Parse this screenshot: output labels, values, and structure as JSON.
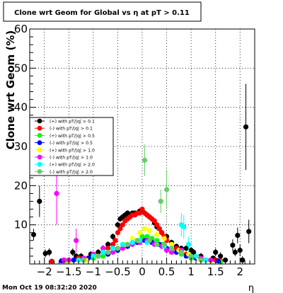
{
  "chart_data": {
    "type": "scatter",
    "title": "Clone wrt Geom for Global vs   η at pT > 0.11",
    "xlabel": "η",
    "ylabel": "Clone wrt Geom (%)",
    "xlim": [
      -2.3,
      2.3
    ],
    "ylim": [
      0,
      60
    ],
    "x_ticks": [
      -2,
      -1.5,
      -1,
      -0.5,
      0,
      0.5,
      1,
      1.5,
      2
    ],
    "x_tick_labels": [
      "−2",
      "−1.5",
      "−1",
      "−0.5",
      "0",
      "0.5",
      "1",
      "1.5",
      "2"
    ],
    "y_ticks": [
      10,
      20,
      30,
      40,
      50,
      60
    ],
    "y_tick_labels": [
      "10",
      "20",
      "30",
      "40",
      "50",
      "60"
    ],
    "grid": true,
    "legend_position": "left-middle",
    "timestamp": "Mon Oct 19 08:32:20 2020",
    "series": [
      {
        "name": "(+) with pT/|q| > 0.1",
        "color": "#000000",
        "points": [
          [
            -2.22,
            7.5,
            1.5
          ],
          [
            -2.1,
            16,
            4
          ],
          [
            -1.98,
            2.7,
            1
          ],
          [
            -1.9,
            3,
            1
          ],
          [
            -1.6,
            1,
            0.6
          ],
          [
            -1.42,
            3,
            1
          ],
          [
            -1.35,
            2,
            0.8
          ],
          [
            -1.25,
            2,
            0.8
          ],
          [
            -1.2,
            1.2,
            0.6
          ],
          [
            -1.05,
            2.5,
            0.8
          ],
          [
            -0.9,
            3,
            0.8
          ],
          [
            -0.8,
            4,
            0.8
          ],
          [
            -0.7,
            5,
            0.8
          ],
          [
            -0.6,
            7,
            0.8
          ],
          [
            -0.5,
            10,
            0.7
          ],
          [
            -0.45,
            11.5,
            0.7
          ],
          [
            -0.4,
            12,
            0.7
          ],
          [
            -0.35,
            12.5,
            0.7
          ],
          [
            -0.3,
            13,
            0.7
          ],
          [
            -0.25,
            12.5,
            0.7
          ],
          [
            -0.2,
            13,
            0.7
          ],
          [
            -0.15,
            13,
            0.7
          ],
          [
            -0.1,
            13,
            0.7
          ],
          [
            -0.05,
            13.5,
            0.7
          ],
          [
            0,
            13.5,
            0.7
          ],
          [
            0.05,
            13,
            0.7
          ],
          [
            0.1,
            12.5,
            0.7
          ],
          [
            0.15,
            12,
            0.7
          ],
          [
            0.2,
            11.5,
            0.7
          ],
          [
            0.25,
            10.5,
            0.7
          ],
          [
            0.3,
            9.5,
            0.7
          ],
          [
            0.35,
            9,
            0.7
          ],
          [
            0.4,
            8,
            0.7
          ],
          [
            0.5,
            7,
            0.7
          ],
          [
            0.6,
            5.5,
            0.7
          ],
          [
            0.7,
            4.5,
            0.7
          ],
          [
            0.8,
            4,
            0.7
          ],
          [
            0.9,
            4,
            0.7
          ],
          [
            1.0,
            3.5,
            0.8
          ],
          [
            1.05,
            3,
            0.8
          ],
          [
            1.2,
            2,
            0.8
          ],
          [
            1.3,
            1,
            0.6
          ],
          [
            1.45,
            1.5,
            0.6
          ],
          [
            1.5,
            3,
            1
          ],
          [
            1.6,
            2,
            1
          ],
          [
            1.7,
            1,
            0.6
          ],
          [
            1.85,
            4.8,
            1.5
          ],
          [
            1.9,
            3,
            1
          ],
          [
            1.95,
            7.3,
            2
          ],
          [
            2.0,
            3.5,
            1.5
          ],
          [
            2.05,
            1,
            1
          ],
          [
            2.12,
            35,
            11
          ],
          [
            2.18,
            8.3,
            3
          ]
        ]
      },
      {
        "name": "(-) with pT/|q| > 0.1",
        "color": "#ff0000",
        "points": [
          [
            -1.85,
            0.7,
            0.5
          ],
          [
            -1.5,
            1,
            0.6
          ],
          [
            -1.3,
            1.5,
            0.6
          ],
          [
            -1.1,
            1.5,
            0.6
          ],
          [
            -0.9,
            2,
            0.6
          ],
          [
            -0.8,
            3,
            0.6
          ],
          [
            -0.7,
            4,
            0.6
          ],
          [
            -0.6,
            5,
            0.6
          ],
          [
            -0.55,
            6,
            0.6
          ],
          [
            -0.5,
            8,
            0.6
          ],
          [
            -0.45,
            9,
            0.6
          ],
          [
            -0.4,
            10,
            0.6
          ],
          [
            -0.35,
            11,
            0.6
          ],
          [
            -0.3,
            11.5,
            0.6
          ],
          [
            -0.25,
            12,
            0.6
          ],
          [
            -0.2,
            12.5,
            0.6
          ],
          [
            -0.15,
            12.5,
            0.6
          ],
          [
            -0.1,
            13,
            0.6
          ],
          [
            -0.05,
            13,
            0.6
          ],
          [
            0,
            14,
            0.6
          ],
          [
            0.05,
            13,
            0.6
          ],
          [
            0.1,
            12.5,
            0.6
          ],
          [
            0.15,
            12,
            0.6
          ],
          [
            0.2,
            11.5,
            0.6
          ],
          [
            0.25,
            11,
            0.6
          ],
          [
            0.3,
            10,
            0.6
          ],
          [
            0.35,
            9,
            0.6
          ],
          [
            0.4,
            8,
            0.6
          ],
          [
            0.45,
            7,
            0.6
          ],
          [
            0.5,
            6,
            0.6
          ],
          [
            0.6,
            5,
            0.6
          ],
          [
            0.7,
            4,
            0.6
          ],
          [
            0.8,
            3.5,
            0.6
          ],
          [
            0.9,
            2.5,
            0.6
          ],
          [
            1.0,
            2,
            0.6
          ],
          [
            1.1,
            1.5,
            0.6
          ],
          [
            1.3,
            1,
            0.6
          ],
          [
            1.5,
            1,
            0.6
          ],
          [
            1.6,
            0.8,
            0.5
          ]
        ]
      },
      {
        "name": "(+) with pT/|q| > 0.5",
        "color": "#00ff00",
        "points": [
          [
            -1.55,
            0.8,
            0.5
          ],
          [
            -1.2,
            1,
            0.5
          ],
          [
            -1.0,
            1.5,
            0.5
          ],
          [
            -0.8,
            2,
            0.5
          ],
          [
            -0.6,
            3,
            0.5
          ],
          [
            -0.5,
            4,
            0.5
          ],
          [
            -0.3,
            5,
            0.5
          ],
          [
            -0.1,
            6,
            0.5
          ],
          [
            0,
            7,
            0.5
          ],
          [
            0.1,
            7,
            0.5
          ],
          [
            0.2,
            6.5,
            0.5
          ],
          [
            0.3,
            6,
            0.5
          ],
          [
            0.4,
            5,
            0.5
          ],
          [
            0.5,
            4,
            0.5
          ],
          [
            0.6,
            3.5,
            0.5
          ],
          [
            0.8,
            2.5,
            0.5
          ],
          [
            1.0,
            1.5,
            0.5
          ],
          [
            1.2,
            1,
            0.5
          ],
          [
            1.4,
            0.8,
            0.5
          ],
          [
            1.6,
            0.5,
            0.5
          ]
        ]
      },
      {
        "name": "(-) with pT/|q| > 0.5",
        "color": "#0000ff",
        "points": [
          [
            -1.65,
            0.8,
            0.5
          ],
          [
            -1.4,
            1,
            0.5
          ],
          [
            -1.1,
            1.5,
            0.5
          ],
          [
            -0.9,
            2,
            0.5
          ],
          [
            -0.7,
            2.5,
            0.5
          ],
          [
            -0.5,
            3.5,
            0.5
          ],
          [
            -0.3,
            4.5,
            0.5
          ],
          [
            -0.1,
            5.5,
            0.5
          ],
          [
            0.05,
            6,
            0.5
          ],
          [
            0.2,
            5.5,
            0.5
          ],
          [
            0.35,
            5,
            0.5
          ],
          [
            0.5,
            4,
            0.5
          ],
          [
            0.7,
            3,
            0.5
          ],
          [
            0.9,
            2,
            0.5
          ],
          [
            1.1,
            1.5,
            0.5
          ],
          [
            1.3,
            1,
            0.5
          ],
          [
            1.55,
            0.8,
            0.5
          ]
        ]
      },
      {
        "name": "(+) with pT/|q| > 1.0",
        "color": "#ffff00",
        "points": [
          [
            -1.5,
            0.6,
            0.5
          ],
          [
            -1.15,
            1,
            0.5
          ],
          [
            -0.95,
            2,
            0.5
          ],
          [
            -0.7,
            3,
            0.5
          ],
          [
            -0.5,
            4,
            0.5
          ],
          [
            -0.35,
            5,
            0.5
          ],
          [
            -0.2,
            6.5,
            0.5
          ],
          [
            -0.05,
            8,
            0.5
          ],
          [
            0.05,
            9,
            0.6
          ],
          [
            0.15,
            8.5,
            0.5
          ],
          [
            0.3,
            7.5,
            0.5
          ],
          [
            0.45,
            6.5,
            0.5
          ],
          [
            0.6,
            5,
            0.5
          ],
          [
            0.75,
            3.5,
            0.5
          ],
          [
            0.95,
            2.5,
            0.5
          ],
          [
            1.15,
            1.5,
            0.5
          ],
          [
            1.4,
            0.8,
            0.5
          ]
        ]
      },
      {
        "name": "(-) with pT/|q| > 1.0",
        "color": "#ff00ff",
        "points": [
          [
            -1.75,
            18,
            8
          ],
          [
            -1.6,
            1,
            0.6
          ],
          [
            -1.5,
            1,
            0.6
          ],
          [
            -1.35,
            6,
            3
          ],
          [
            -1.2,
            1.5,
            0.6
          ],
          [
            -1.0,
            2.5,
            0.6
          ],
          [
            -0.8,
            4,
            0.6
          ],
          [
            -0.6,
            3,
            0.6
          ],
          [
            -0.4,
            4,
            0.6
          ],
          [
            -0.2,
            5,
            0.6
          ],
          [
            -0.05,
            5.5,
            0.6
          ],
          [
            0.1,
            6,
            0.6
          ],
          [
            0.25,
            5,
            0.6
          ],
          [
            0.4,
            4.5,
            0.6
          ],
          [
            0.5,
            3.5,
            0.6
          ],
          [
            0.6,
            3,
            0.6
          ],
          [
            0.8,
            3.5,
            0.6
          ],
          [
            1.0,
            2,
            0.6
          ],
          [
            1.2,
            1.5,
            0.6
          ],
          [
            1.4,
            1,
            0.6
          ]
        ]
      },
      {
        "name": "(+) with pT/|q| > 2.0",
        "color": "#00ffff",
        "points": [
          [
            -1.3,
            1,
            0.6
          ],
          [
            -1.0,
            2,
            0.6
          ],
          [
            -0.8,
            3,
            0.6
          ],
          [
            -0.6,
            4,
            0.6
          ],
          [
            -0.4,
            5,
            0.6
          ],
          [
            -0.2,
            5.5,
            0.6
          ],
          [
            -0.05,
            6,
            0.6
          ],
          [
            0.1,
            5.5,
            0.6
          ],
          [
            0.3,
            5,
            0.6
          ],
          [
            0.45,
            4.5,
            0.6
          ],
          [
            0.6,
            4,
            0.6
          ],
          [
            0.8,
            10,
            3
          ],
          [
            0.85,
            9.5,
            3
          ],
          [
            0.95,
            5,
            2
          ],
          [
            1.1,
            2,
            0.8
          ],
          [
            1.3,
            1,
            0.6
          ]
        ]
      },
      {
        "name": "(-) with pT/|q| > 2.0",
        "color": "#66cc66",
        "points": [
          [
            -1.2,
            1,
            0.6
          ],
          [
            -0.9,
            2,
            0.6
          ],
          [
            -0.7,
            3,
            0.6
          ],
          [
            -0.5,
            4,
            0.6
          ],
          [
            -0.3,
            5,
            0.6
          ],
          [
            -0.1,
            6,
            0.6
          ],
          [
            0.05,
            26.5,
            4
          ],
          [
            0.15,
            6,
            0.6
          ],
          [
            0.3,
            5,
            0.6
          ],
          [
            0.38,
            16,
            3
          ],
          [
            0.45,
            5,
            0.8
          ],
          [
            0.5,
            19,
            5
          ],
          [
            0.6,
            4,
            0.6
          ],
          [
            0.8,
            3,
            0.6
          ],
          [
            1.0,
            2,
            0.6
          ],
          [
            1.2,
            1,
            0.6
          ]
        ]
      }
    ]
  }
}
